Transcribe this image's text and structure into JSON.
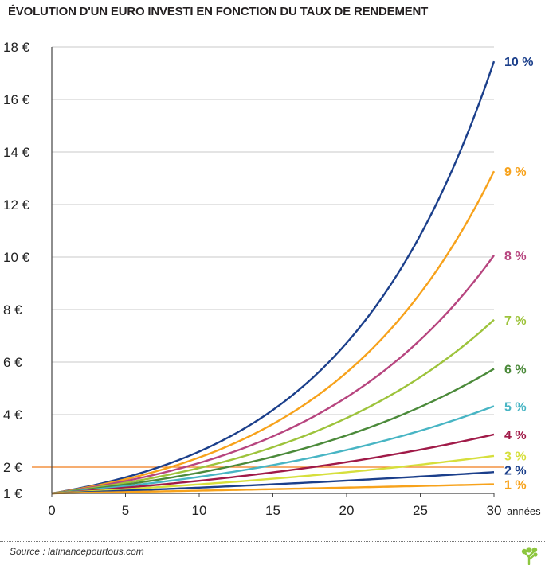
{
  "chart_data": {
    "type": "line",
    "title": "ÉVOLUTION D'UN EURO INVESTI EN FONCTION DU TAUX DE RENDEMENT",
    "xlabel": "années",
    "ylabel": "",
    "xlim": [
      0,
      30
    ],
    "ylim": [
      1,
      18
    ],
    "x_ticks": [
      0,
      5,
      10,
      15,
      20,
      25,
      30
    ],
    "x_tick_labels": [
      "0",
      "5",
      "10",
      "15",
      "20",
      "25",
      "30"
    ],
    "y_ticks": [
      1,
      2,
      4,
      6,
      8,
      10,
      12,
      14,
      16,
      18
    ],
    "y_tick_labels": [
      "1 €",
      "2 €",
      "4 €",
      "6 €",
      "8 €",
      "10 €",
      "12 €",
      "14 €",
      "16 €",
      "18 €"
    ],
    "grid": true,
    "reference_line": {
      "y": 2,
      "color": "#f07c1a"
    },
    "series": [
      {
        "name": "10 %",
        "rate": 0.1,
        "color": "#1b3f8b",
        "values": [
          1,
          1.61,
          2.59,
          4.18,
          6.73,
          10.83,
          17.45
        ]
      },
      {
        "name": "9 %",
        "rate": 0.09,
        "color": "#f7a21b",
        "values": [
          1,
          1.54,
          2.37,
          3.64,
          5.6,
          8.62,
          13.27
        ]
      },
      {
        "name": "8 %",
        "rate": 0.08,
        "color": "#b7457f",
        "values": [
          1,
          1.47,
          2.16,
          3.17,
          4.66,
          6.85,
          10.06
        ]
      },
      {
        "name": "7 %",
        "rate": 0.07,
        "color": "#9dc33b",
        "values": [
          1,
          1.4,
          1.97,
          2.76,
          3.87,
          5.43,
          7.61
        ]
      },
      {
        "name": "6 %",
        "rate": 0.06,
        "color": "#4b8a3a",
        "values": [
          1,
          1.34,
          1.79,
          2.4,
          3.21,
          4.29,
          5.74
        ]
      },
      {
        "name": "5 %",
        "rate": 0.05,
        "color": "#48b5c4",
        "values": [
          1,
          1.28,
          1.63,
          2.08,
          2.65,
          3.39,
          4.32
        ]
      },
      {
        "name": "4 %",
        "rate": 0.04,
        "color": "#a01a48",
        "values": [
          1,
          1.22,
          1.48,
          1.8,
          2.19,
          2.67,
          3.24
        ]
      },
      {
        "name": "3 %",
        "rate": 0.03,
        "color": "#d6df3c",
        "values": [
          1,
          1.16,
          1.34,
          1.56,
          1.81,
          2.09,
          2.43
        ]
      },
      {
        "name": "2 %",
        "rate": 0.02,
        "color": "#1b3f8b",
        "values": [
          1,
          1.1,
          1.22,
          1.35,
          1.49,
          1.64,
          1.81
        ]
      },
      {
        "name": "1 %",
        "rate": 0.01,
        "color": "#f7a21b",
        "values": [
          1,
          1.05,
          1.1,
          1.16,
          1.22,
          1.28,
          1.35
        ]
      }
    ],
    "y_tick_colors": {
      "2 €": "#f07c1a"
    }
  },
  "footer": {
    "source": "Source : lafinancepourtous.com"
  },
  "logo": {
    "icon": "tree-icon",
    "color": "#8dc63f"
  }
}
